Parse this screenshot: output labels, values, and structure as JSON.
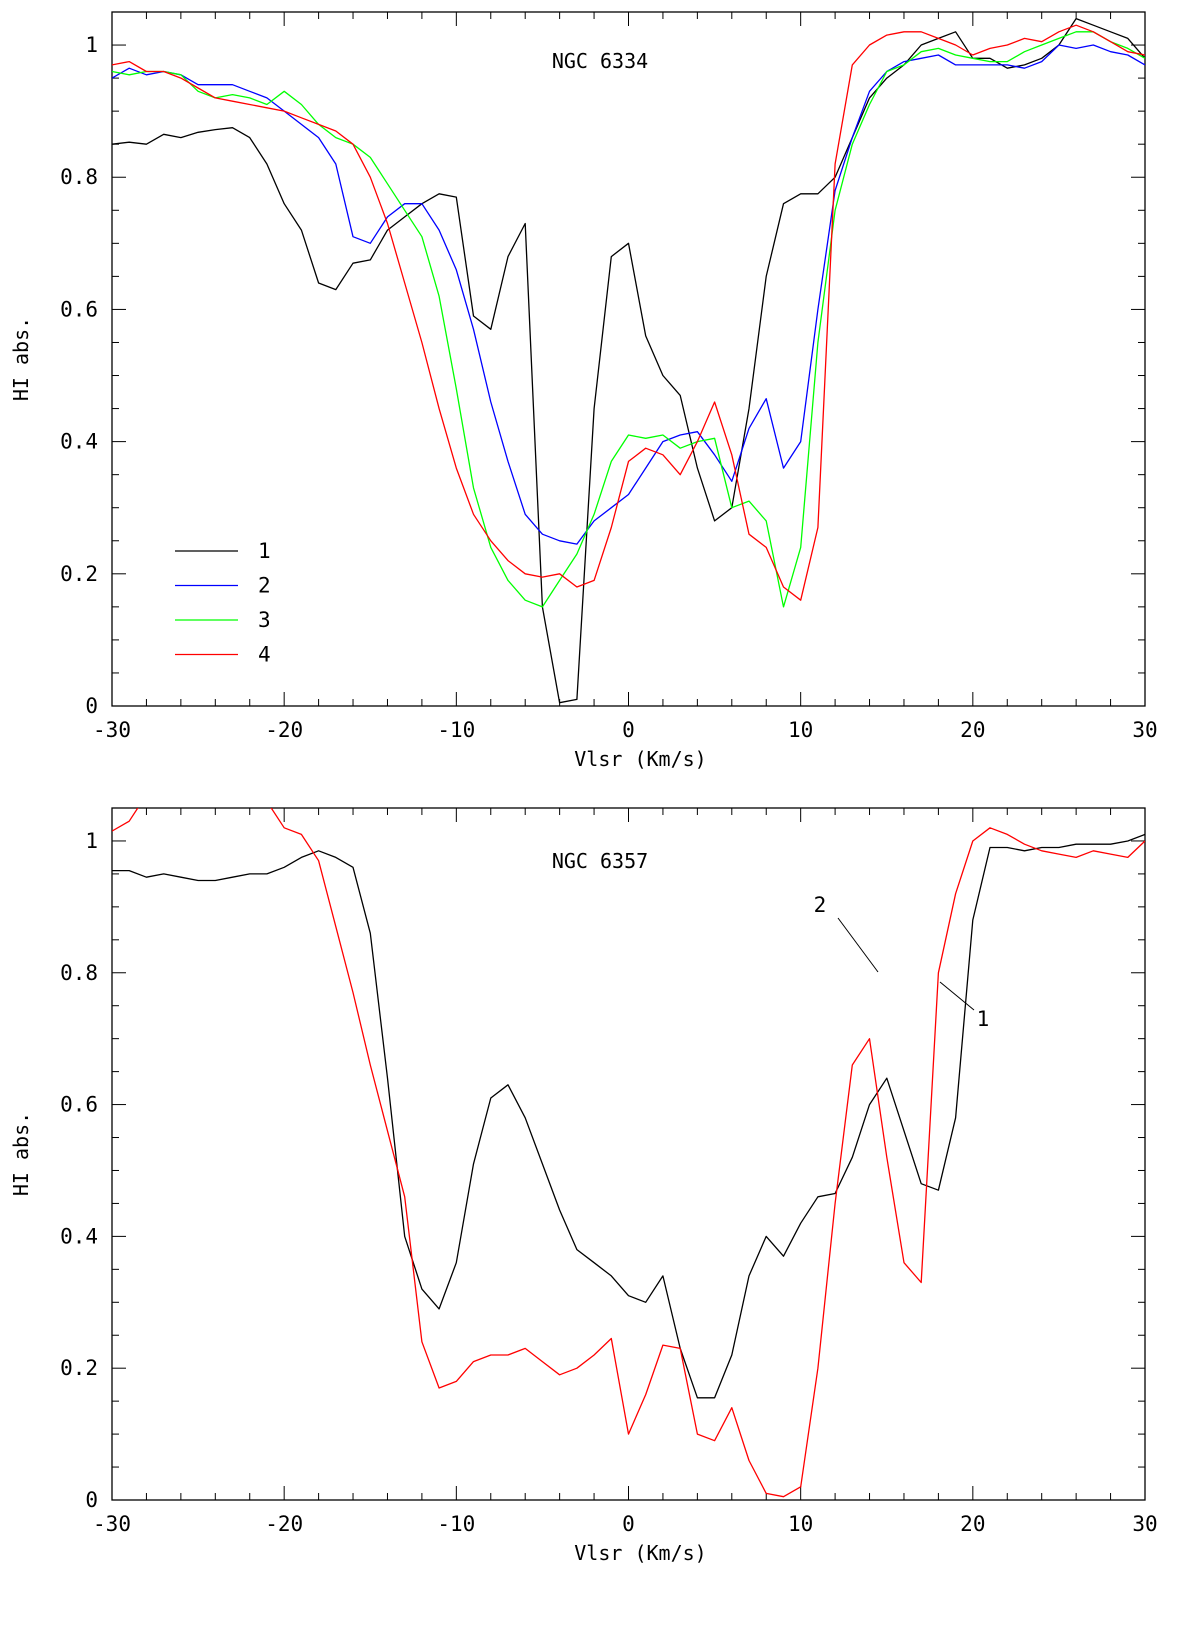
{
  "chart_data": [
    {
      "type": "line",
      "title": "NGC 6334",
      "xlabel": "Vlsr (Km/s)",
      "ylabel": "HI abs.",
      "xlim": [
        -30,
        30
      ],
      "ylim": [
        0,
        1.05
      ],
      "xticks": [
        -30,
        -20,
        -10,
        0,
        10,
        20,
        30
      ],
      "xtick_labels": [
        "-30",
        "-20",
        "-10",
        "0",
        "10",
        "20",
        "30"
      ],
      "yticks": [
        0,
        0.2,
        0.4,
        0.6,
        0.8,
        1
      ],
      "ytick_labels": [
        "0",
        "0.2",
        "0.4",
        "0.6",
        "0.8",
        "1"
      ],
      "grid": false,
      "legend_position": "bottom-left",
      "series": [
        {
          "name": "1",
          "color": "#000000",
          "x": [
            -30,
            -29,
            -28,
            -27,
            -26,
            -25,
            -24,
            -23,
            -22,
            -21,
            -20,
            -19,
            -18,
            -17,
            -16,
            -15,
            -14,
            -13,
            -12,
            -11,
            -10,
            -9,
            -8,
            -7,
            -6,
            -5,
            -4,
            -3,
            -2,
            -1,
            0,
            1,
            2,
            3,
            4,
            5,
            6,
            7,
            8,
            9,
            10,
            11,
            12,
            13,
            14,
            15,
            16,
            17,
            18,
            19,
            20,
            21,
            22,
            23,
            24,
            25,
            26,
            27,
            28,
            29,
            30
          ],
          "y": [
            0.85,
            0.853,
            0.85,
            0.865,
            0.86,
            0.868,
            0.872,
            0.875,
            0.86,
            0.82,
            0.76,
            0.72,
            0.64,
            0.63,
            0.67,
            0.675,
            0.72,
            0.74,
            0.76,
            0.775,
            0.77,
            0.59,
            0.57,
            0.68,
            0.73,
            0.15,
            0.005,
            0.01,
            0.45,
            0.68,
            0.7,
            0.56,
            0.5,
            0.47,
            0.36,
            0.28,
            0.3,
            0.45,
            0.65,
            0.76,
            0.775,
            0.775,
            0.8,
            0.86,
            0.92,
            0.95,
            0.97,
            1.0,
            1.01,
            1.02,
            0.98,
            0.98,
            0.965,
            0.97,
            0.98,
            1.0,
            1.04,
            1.03,
            1.02,
            1.01,
            0.98
          ]
        },
        {
          "name": "2",
          "color": "#0000ff",
          "x": [
            -30,
            -29,
            -28,
            -27,
            -26,
            -25,
            -24,
            -23,
            -22,
            -21,
            -20,
            -19,
            -18,
            -17,
            -16,
            -15,
            -14,
            -13,
            -12,
            -11,
            -10,
            -9,
            -8,
            -7,
            -6,
            -5,
            -4,
            -3,
            -2,
            -1,
            0,
            1,
            2,
            3,
            4,
            5,
            6,
            7,
            8,
            9,
            10,
            11,
            12,
            13,
            14,
            15,
            16,
            17,
            18,
            19,
            20,
            21,
            22,
            23,
            24,
            25,
            26,
            27,
            28,
            29,
            30
          ],
          "y": [
            0.95,
            0.965,
            0.955,
            0.96,
            0.955,
            0.94,
            0.94,
            0.94,
            0.93,
            0.92,
            0.9,
            0.88,
            0.86,
            0.82,
            0.71,
            0.7,
            0.74,
            0.76,
            0.76,
            0.72,
            0.66,
            0.57,
            0.46,
            0.37,
            0.29,
            0.26,
            0.25,
            0.245,
            0.28,
            0.3,
            0.32,
            0.36,
            0.4,
            0.41,
            0.415,
            0.38,
            0.34,
            0.42,
            0.465,
            0.36,
            0.4,
            0.6,
            0.78,
            0.86,
            0.93,
            0.96,
            0.975,
            0.98,
            0.985,
            0.97,
            0.97,
            0.97,
            0.97,
            0.965,
            0.975,
            1.0,
            0.995,
            1.0,
            0.99,
            0.985,
            0.97
          ]
        },
        {
          "name": "3",
          "color": "#00ff00",
          "x": [
            -30,
            -29,
            -28,
            -27,
            -26,
            -25,
            -24,
            -23,
            -22,
            -21,
            -20,
            -19,
            -18,
            -17,
            -16,
            -15,
            -14,
            -13,
            -12,
            -11,
            -10,
            -9,
            -8,
            -7,
            -6,
            -5,
            -4,
            -3,
            -2,
            -1,
            0,
            1,
            2,
            3,
            4,
            5,
            6,
            7,
            8,
            9,
            10,
            11,
            12,
            13,
            14,
            15,
            16,
            17,
            18,
            19,
            20,
            21,
            22,
            23,
            24,
            25,
            26,
            27,
            28,
            29,
            30
          ],
          "y": [
            0.96,
            0.955,
            0.96,
            0.96,
            0.955,
            0.93,
            0.92,
            0.925,
            0.92,
            0.91,
            0.93,
            0.91,
            0.88,
            0.86,
            0.85,
            0.83,
            0.79,
            0.75,
            0.71,
            0.62,
            0.48,
            0.33,
            0.24,
            0.19,
            0.16,
            0.15,
            0.19,
            0.23,
            0.29,
            0.37,
            0.41,
            0.405,
            0.41,
            0.39,
            0.4,
            0.405,
            0.3,
            0.31,
            0.28,
            0.15,
            0.24,
            0.55,
            0.75,
            0.85,
            0.91,
            0.96,
            0.97,
            0.99,
            0.995,
            0.985,
            0.98,
            0.975,
            0.975,
            0.99,
            1.0,
            1.01,
            1.02,
            1.02,
            1.005,
            0.995,
            0.98
          ]
        },
        {
          "name": "4",
          "color": "#ff0000",
          "x": [
            -30,
            -29,
            -28,
            -27,
            -26,
            -25,
            -24,
            -23,
            -22,
            -21,
            -20,
            -19,
            -18,
            -17,
            -16,
            -15,
            -14,
            -13,
            -12,
            -11,
            -10,
            -9,
            -8,
            -7,
            -6,
            -5,
            -4,
            -3,
            -2,
            -1,
            0,
            1,
            2,
            3,
            4,
            5,
            6,
            7,
            8,
            9,
            10,
            11,
            12,
            13,
            14,
            15,
            16,
            17,
            18,
            19,
            20,
            21,
            22,
            23,
            24,
            25,
            26,
            27,
            28,
            29,
            30
          ],
          "y": [
            0.97,
            0.975,
            0.96,
            0.96,
            0.95,
            0.935,
            0.92,
            0.915,
            0.91,
            0.905,
            0.9,
            0.89,
            0.88,
            0.87,
            0.85,
            0.8,
            0.73,
            0.64,
            0.55,
            0.45,
            0.36,
            0.29,
            0.25,
            0.22,
            0.2,
            0.195,
            0.2,
            0.18,
            0.19,
            0.27,
            0.37,
            0.39,
            0.38,
            0.35,
            0.4,
            0.46,
            0.38,
            0.26,
            0.24,
            0.18,
            0.16,
            0.27,
            0.82,
            0.97,
            1.0,
            1.015,
            1.02,
            1.02,
            1.01,
            1.0,
            0.985,
            0.995,
            1.0,
            1.01,
            1.005,
            1.02,
            1.03,
            1.02,
            1.005,
            0.99,
            0.985
          ]
        }
      ]
    },
    {
      "type": "line",
      "title": "NGC 6357",
      "xlabel": "Vlsr (Km/s)",
      "ylabel": "HI abs.",
      "xlim": [
        -30,
        30
      ],
      "ylim": [
        0,
        1.05
      ],
      "xticks": [
        -30,
        -20,
        -10,
        0,
        10,
        20,
        30
      ],
      "xtick_labels": [
        "-30",
        "-20",
        "-10",
        "0",
        "10",
        "20",
        "30"
      ],
      "yticks": [
        0,
        0.2,
        0.4,
        0.6,
        0.8,
        1
      ],
      "ytick_labels": [
        "0",
        "0.2",
        "0.4",
        "0.6",
        "0.8",
        "1"
      ],
      "grid": false,
      "annotations": [
        {
          "text": "2",
          "points_to_series": "2",
          "at_x": 14.9,
          "at_y": 0.81
        },
        {
          "text": "1",
          "points_to_series": "1",
          "at_x": 18.3,
          "at_y": 0.79
        }
      ],
      "series": [
        {
          "name": "1",
          "color": "#000000",
          "x": [
            -30,
            -29,
            -28,
            -27,
            -26,
            -25,
            -24,
            -23,
            -22,
            -21,
            -20,
            -19,
            -18,
            -17,
            -16,
            -15,
            -14,
            -13,
            -12,
            -11,
            -10,
            -9,
            -8,
            -7,
            -6,
            -5,
            -4,
            -3,
            -2,
            -1,
            0,
            1,
            2,
            3,
            4,
            5,
            6,
            7,
            8,
            9,
            10,
            11,
            12,
            13,
            14,
            15,
            16,
            17,
            18,
            19,
            20,
            21,
            22,
            23,
            24,
            25,
            26,
            27,
            28,
            29,
            30
          ],
          "y": [
            0.955,
            0.955,
            0.945,
            0.95,
            0.945,
            0.94,
            0.94,
            0.945,
            0.95,
            0.95,
            0.96,
            0.975,
            0.985,
            0.975,
            0.96,
            0.86,
            0.64,
            0.4,
            0.32,
            0.29,
            0.36,
            0.51,
            0.61,
            0.63,
            0.58,
            0.51,
            0.44,
            0.38,
            0.36,
            0.34,
            0.31,
            0.3,
            0.34,
            0.23,
            0.155,
            0.155,
            0.22,
            0.34,
            0.4,
            0.37,
            0.42,
            0.46,
            0.465,
            0.52,
            0.6,
            0.64,
            0.56,
            0.48,
            0.47,
            0.58,
            0.88,
            0.99,
            0.99,
            0.985,
            0.99,
            0.99,
            0.995,
            0.995,
            0.995,
            1.0,
            1.01
          ]
        },
        {
          "name": "2",
          "color": "#ff0000",
          "x": [
            -30,
            -29,
            -28,
            -27,
            -26,
            -25,
            -24,
            -23,
            -22,
            -21,
            -20,
            -19,
            -18,
            -17,
            -16,
            -15,
            -14,
            -13,
            -12,
            -11,
            -10,
            -9,
            -8,
            -7,
            -6,
            -5,
            -4,
            -3,
            -2,
            -1,
            0,
            1,
            2,
            3,
            4,
            5,
            6,
            7,
            8,
            9,
            10,
            11,
            12,
            13,
            14,
            15,
            16,
            17,
            18,
            19,
            20,
            21,
            22,
            23,
            24,
            25,
            26,
            27,
            28,
            29,
            30
          ],
          "y": [
            1.015,
            1.03,
            1.07,
            1.1,
            1.1,
            1.09,
            1.07,
            1.08,
            1.07,
            1.06,
            1.02,
            1.01,
            0.97,
            0.87,
            0.77,
            0.66,
            0.56,
            0.46,
            0.24,
            0.17,
            0.18,
            0.21,
            0.22,
            0.22,
            0.23,
            0.21,
            0.19,
            0.2,
            0.22,
            0.245,
            0.1,
            0.16,
            0.235,
            0.23,
            0.1,
            0.09,
            0.14,
            0.06,
            0.01,
            0.005,
            0.02,
            0.2,
            0.45,
            0.66,
            0.7,
            0.52,
            0.36,
            0.33,
            0.8,
            0.92,
            1.0,
            1.02,
            1.01,
            0.995,
            0.985,
            0.98,
            0.975,
            0.985,
            0.98,
            0.975,
            1.0
          ]
        }
      ]
    }
  ]
}
